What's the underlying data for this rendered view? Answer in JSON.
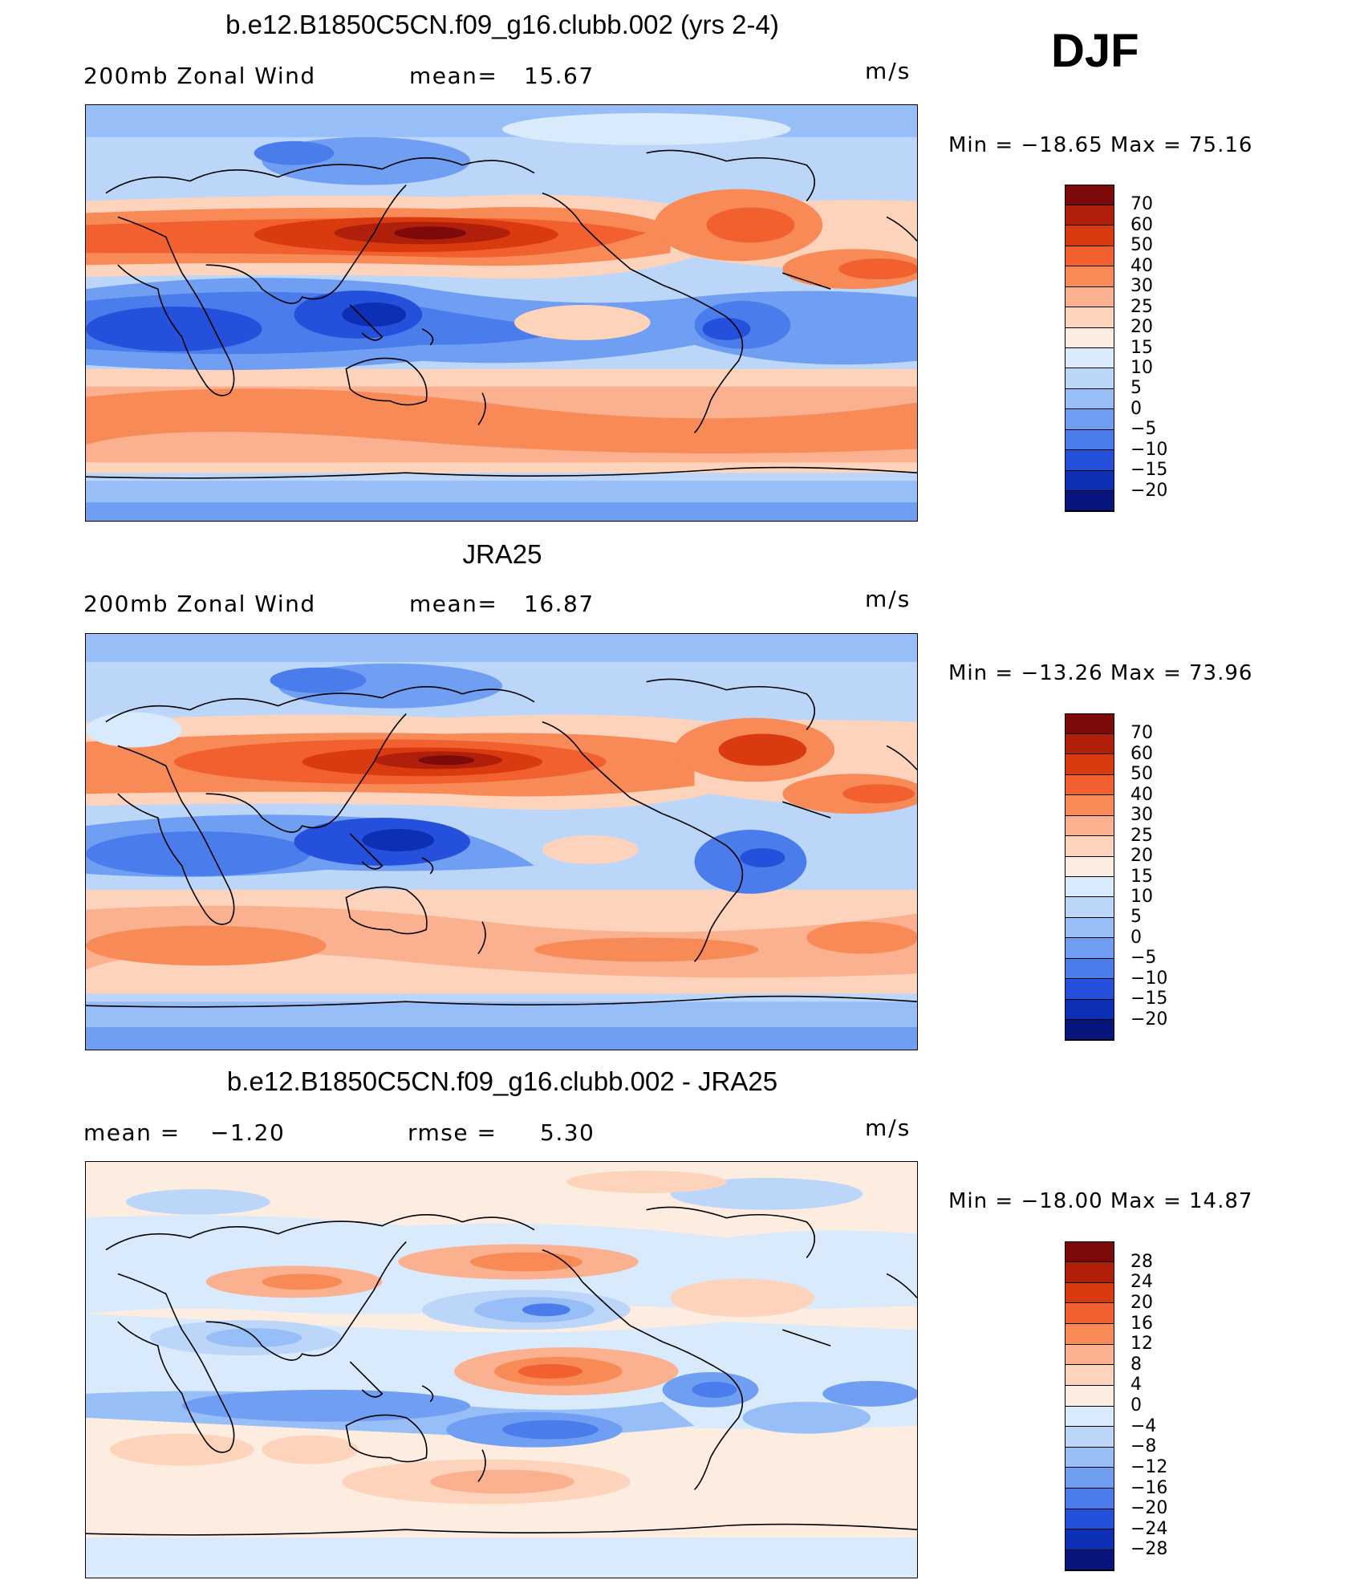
{
  "season": "DJF",
  "units": "m/s",
  "panels": [
    {
      "title": "b.e12.B1850C5CN.f09_g16.clubb.002 (yrs 2-4)",
      "variable": "200mb  Zonal  Wind",
      "stat1_label": "mean=",
      "stat1_value": "15.67",
      "stat2_label": "",
      "stat2_value": "",
      "minmax": "Min  =  −18.65  Max  =    75.16",
      "colorbar_labels": [
        "70",
        "60",
        "50",
        "40",
        "30",
        "25",
        "20",
        "15",
        "10",
        "5",
        "0",
        "−5",
        "−10",
        "−15",
        "−20"
      ]
    },
    {
      "title": "JRA25",
      "variable": "200mb  Zonal  Wind",
      "stat1_label": "mean=",
      "stat1_value": "16.87",
      "stat2_label": "",
      "stat2_value": "",
      "minmax": "Min  =  −13.26  Max  =    73.96",
      "colorbar_labels": [
        "70",
        "60",
        "50",
        "40",
        "30",
        "25",
        "20",
        "15",
        "10",
        "5",
        "0",
        "−5",
        "−10",
        "−15",
        "−20"
      ]
    },
    {
      "title": "b.e12.B1850C5CN.f09_g16.clubb.002 - JRA25",
      "variable": "",
      "stat1_label": "mean  =",
      "stat1_value": "−1.20",
      "stat2_label": "rmse  =",
      "stat2_value": "5.30",
      "minmax": "Min  =  −18.00  Max  =    14.87",
      "colorbar_labels": [
        "28",
        "24",
        "20",
        "16",
        "12",
        "8",
        "4",
        "0",
        "−4",
        "−8",
        "−12",
        "−16",
        "−20",
        "−24",
        "−28"
      ]
    }
  ],
  "colors": {
    "palette_16": [
      "#7d0a0a",
      "#b01f0a",
      "#d93a10",
      "#f26030",
      "#f88a58",
      "#fbb08f",
      "#fdd3bc",
      "#fdece0",
      "#d9eafc",
      "#bcd6fa",
      "#97bef7",
      "#6f9ef2",
      "#4a7ceb",
      "#2550db",
      "#0d2fb5",
      "#08157d"
    ],
    "ocean_cool": "#bcd6fa",
    "diff_base": "#fdece0",
    "coastline": "#000000"
  }
}
